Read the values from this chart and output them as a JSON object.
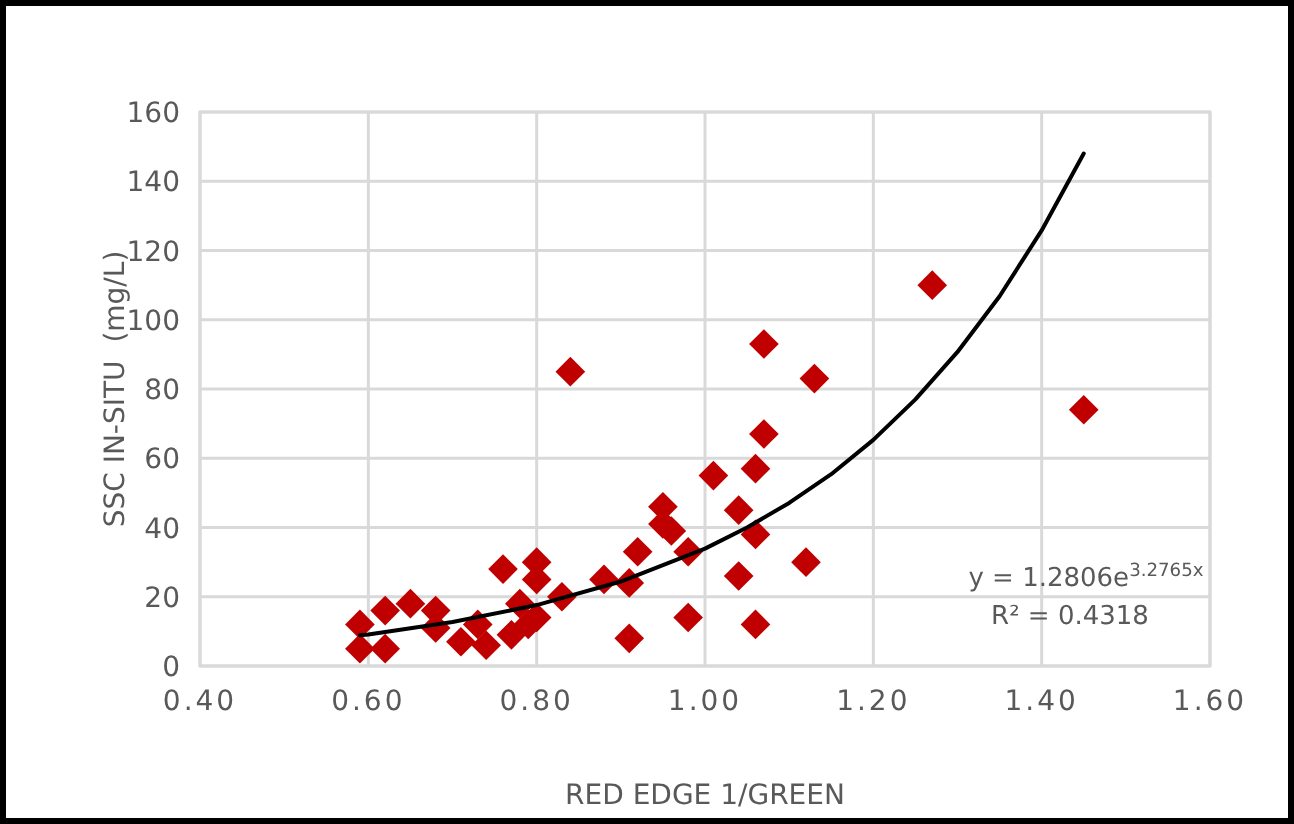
{
  "chart_data": {
    "type": "scatter",
    "xlabel": "RED EDGE 1/GREEN",
    "ylabel": "SSC IN-SITU  (mg/L)",
    "xlim": [
      0.4,
      1.6
    ],
    "ylim": [
      0,
      160
    ],
    "xticks": [
      {
        "value": 0.4,
        "label": "0.40"
      },
      {
        "value": 0.6,
        "label": "0.60"
      },
      {
        "value": 0.8,
        "label": "0.80"
      },
      {
        "value": 1.0,
        "label": "1.00"
      },
      {
        "value": 1.2,
        "label": "1.20"
      },
      {
        "value": 1.4,
        "label": "1.40"
      },
      {
        "value": 1.6,
        "label": "1.60"
      }
    ],
    "yticks": [
      0,
      20,
      40,
      60,
      80,
      100,
      120,
      140,
      160
    ],
    "grid": true,
    "series": [
      {
        "marker": "diamond",
        "color": "#c00000",
        "x": [
          0.59,
          0.59,
          0.62,
          0.62,
          0.65,
          0.68,
          0.68,
          0.71,
          0.73,
          0.74,
          0.76,
          0.77,
          0.78,
          0.79,
          0.8,
          0.8,
          0.8,
          0.83,
          0.84,
          0.88,
          0.91,
          0.91,
          0.92,
          0.95,
          0.95,
          0.96,
          0.98,
          0.98,
          1.01,
          1.04,
          1.04,
          1.06,
          1.06,
          1.06,
          1.07,
          1.07,
          1.12,
          1.13,
          1.27,
          1.45
        ],
        "values": [
          5,
          12,
          5,
          16,
          18,
          16,
          11,
          7,
          12,
          6,
          28,
          9,
          18,
          12,
          30,
          25,
          14,
          20,
          85,
          25,
          8,
          24,
          33,
          41,
          46,
          39,
          14,
          33,
          55,
          26,
          45,
          12,
          38,
          57,
          67,
          93,
          30,
          83,
          110,
          74
        ]
      },
      {
        "type": "line",
        "marker": "none",
        "color": "#000000",
        "x": [
          0.59,
          0.6,
          0.7,
          0.8,
          0.9,
          1.0,
          1.05,
          1.1,
          1.15,
          1.2,
          1.25,
          1.3,
          1.35,
          1.4,
          1.45
        ],
        "values": [
          8.9,
          9.1,
          12.7,
          17.6,
          24.4,
          33.9,
          40.0,
          47.1,
          55.4,
          65.3,
          77.0,
          90.7,
          106.8,
          125.8,
          148
        ]
      }
    ],
    "annotations": [
      "y = 1.2806e$^{3.2765x}$",
      "R² = 0.4318"
    ]
  }
}
